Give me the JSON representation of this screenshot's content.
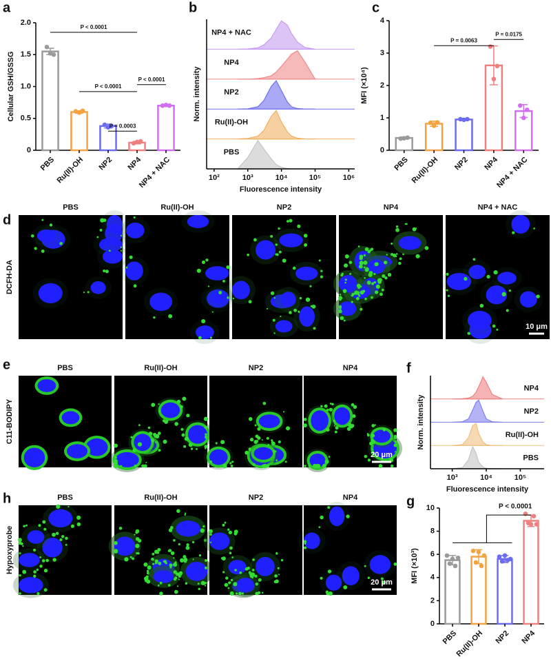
{
  "chart_data": [
    {
      "panel": "a",
      "type": "bar",
      "ylabel": "Cellular GSH/GSSG",
      "categories": [
        "PBS",
        "Ru(II)-OH",
        "NP2",
        "NP4",
        "NP4 + NAC"
      ],
      "values": [
        1.55,
        0.6,
        0.38,
        0.12,
        0.7
      ],
      "errors": [
        0.05,
        0.02,
        0.03,
        0.02,
        0.01
      ],
      "points": [
        [
          1.62,
          1.52,
          1.5
        ],
        [
          0.61,
          0.59,
          0.62
        ],
        [
          0.4,
          0.36,
          0.38
        ],
        [
          0.11,
          0.13,
          0.14
        ],
        [
          0.7,
          0.71,
          0.7
        ]
      ],
      "colors": [
        "#9a9a9a",
        "#f4a340",
        "#6c6cf0",
        "#f08080",
        "#d070f0"
      ],
      "ylim": [
        0,
        2
      ],
      "yticks": [
        0,
        0.5,
        {
          "value": 1,
          "label": "1.0"
        },
        1.5,
        {
          "value": 2,
          "label": "2.0"
        }
      ],
      "annotations": [
        "P < 0.0001",
        "P < 0.0001",
        "P = 0.0003",
        "P < 0.0001"
      ]
    },
    {
      "panel": "b",
      "type": "ridgeline",
      "ylabel": "Norm. intensity",
      "xlabel": "Fluorescence intensity",
      "log_x": true,
      "x": [
        500,
        1000,
        2000,
        3000,
        5000,
        7000,
        10000,
        15000,
        20000,
        30000,
        50000,
        100000
      ],
      "series": [
        {
          "name": "NP4 + NAC",
          "color": "#c79cf0",
          "values": [
            0,
            1,
            5,
            15,
            40,
            70,
            100,
            85,
            55,
            25,
            6,
            0
          ]
        },
        {
          "name": "NP4",
          "color": "#f08a8a",
          "values": [
            0,
            0,
            2,
            5,
            12,
            25,
            45,
            70,
            88,
            100,
            60,
            0
          ]
        },
        {
          "name": "NP2",
          "color": "#7070ee",
          "values": [
            0,
            1,
            8,
            30,
            80,
            100,
            65,
            25,
            8,
            2,
            0,
            0
          ]
        },
        {
          "name": "Ru(II)-OH",
          "color": "#f0b060",
          "values": [
            0,
            2,
            10,
            30,
            80,
            100,
            60,
            25,
            10,
            3,
            0,
            0
          ]
        },
        {
          "name": "PBS",
          "color": "#c4c4c4",
          "values": [
            0,
            40,
            100,
            70,
            35,
            15,
            5,
            2,
            0,
            0,
            0,
            0
          ]
        }
      ],
      "xlim": [
        60,
        1500000
      ],
      "xticks": [
        {
          "value": 100,
          "label": "10²"
        },
        {
          "value": 1000,
          "label": "10³"
        },
        {
          "value": 10000,
          "label": "10⁴"
        },
        {
          "value": 100000,
          "label": "10⁵"
        },
        {
          "value": 1000000,
          "label": "10⁶"
        }
      ]
    },
    {
      "panel": "c",
      "type": "bar",
      "ylabel": "MFI (×10⁴)",
      "categories": [
        "PBS",
        "Ru(II)-OH",
        "NP2",
        "NP4",
        "NP4 + NAC"
      ],
      "values": [
        0.38,
        0.82,
        0.95,
        2.62,
        1.21
      ],
      "errors": [
        0.03,
        0.08,
        0.03,
        0.6,
        0.2
      ],
      "points": [
        [
          0.36,
          0.37,
          0.39
        ],
        [
          0.85,
          0.76,
          0.86
        ],
        [
          0.96,
          0.94,
          0.96
        ],
        [
          3.2,
          2.2,
          2.6
        ],
        [
          1.38,
          1.0,
          1.25
        ]
      ],
      "colors": [
        "#9a9a9a",
        "#f4a340",
        "#6c6cf0",
        "#f08080",
        "#d070f0"
      ],
      "ylim": [
        0,
        4
      ],
      "yticks": [
        0,
        1,
        2,
        3,
        4
      ],
      "annotations": [
        "P = 0.0063",
        "P = 0.0175"
      ]
    },
    {
      "panel": "f",
      "type": "ridgeline",
      "ylabel": "Norm. intensity",
      "xlabel": "Fluorescence intensity",
      "log_x": true,
      "x": [
        1000,
        2000,
        3000,
        4000,
        5000,
        6000,
        8000,
        10000,
        15000,
        30000
      ],
      "series": [
        {
          "name": "NP4",
          "color": "#f08080",
          "values": [
            0,
            1,
            4,
            12,
            30,
            55,
            100,
            75,
            20,
            0
          ]
        },
        {
          "name": "NP2",
          "color": "#8080f0",
          "values": [
            0,
            2,
            15,
            55,
            90,
            100,
            50,
            15,
            2,
            0
          ]
        },
        {
          "name": "Ru(II)-OH",
          "color": "#f0c080",
          "values": [
            0,
            4,
            35,
            90,
            100,
            55,
            15,
            4,
            0,
            0
          ]
        },
        {
          "name": "PBS",
          "color": "#c4c4c4",
          "values": [
            0,
            5,
            40,
            100,
            70,
            30,
            8,
            2,
            0,
            0
          ]
        }
      ],
      "xlim": [
        230,
        500000
      ],
      "xticks": [
        {
          "value": 1000,
          "label": "10³"
        },
        {
          "value": 10000,
          "label": "10⁴"
        },
        {
          "value": 100000,
          "label": "10⁵"
        }
      ]
    },
    {
      "panel": "g",
      "type": "bar",
      "ylabel": "MFI (×10³)",
      "categories": [
        "PBS",
        "Ru(II)-OH",
        "NP2",
        "NP4"
      ],
      "values": [
        5.5,
        5.8,
        5.6,
        8.9
      ],
      "errors": [
        0.4,
        0.6,
        0.3,
        0.5
      ],
      "points": [
        [
          5.9,
          5.2,
          5.6,
          5.0,
          5.7
        ],
        [
          6.3,
          5.3,
          6.2,
          5.0,
          5.9
        ],
        [
          5.8,
          5.4,
          5.9,
          5.5,
          5.6
        ],
        [
          9.5,
          8.7,
          8.6,
          9.3,
          8.6
        ]
      ],
      "colors": [
        "#9a9a9a",
        "#f4a340",
        "#6c6cf0",
        "#f08080"
      ],
      "ylim": [
        0,
        10
      ],
      "yticks": [
        0,
        2,
        4,
        6,
        8,
        10
      ],
      "annotations": [
        "P < 0.0001"
      ]
    }
  ],
  "image_panels": [
    {
      "panel": "d",
      "row_label": "DCFH-DA",
      "columns": [
        "PBS",
        "Ru(II)-OH",
        "NP2",
        "NP4",
        "NP4 + NAC"
      ],
      "scale_bar": "10 μm"
    },
    {
      "panel": "e",
      "row_label": "C11-BODIPY",
      "columns": [
        "PBS",
        "Ru(II)-OH",
        "NP2",
        "NP4"
      ],
      "scale_bar": "20 μm"
    },
    {
      "panel": "h",
      "row_label": "Hypoxyprobe",
      "columns": [
        "PBS",
        "Ru(II)-OH",
        "NP2",
        "NP4"
      ],
      "scale_bar": "20 μm"
    }
  ]
}
